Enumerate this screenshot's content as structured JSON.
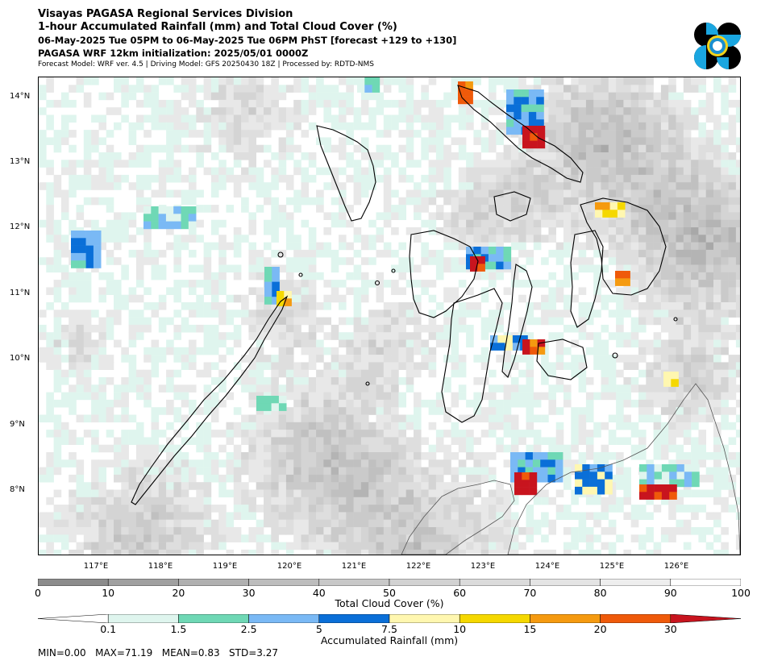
{
  "header": {
    "line1": "Visayas PAGASA Regional Services Division",
    "line2": "1-hour Accumulated Rainfall (mm) and Total Cloud Cover (%)",
    "line3": "06-May-2025 Tue 05PM to 06-May-2025 Tue 06PM PhST [forecast +129 to +130]",
    "line4": "PAGASA WRF 12km initialization: 2025/05/01 0000Z",
    "line5": "Forecast Model: WRF ver. 4.5 | Driving Model: GFS 20250430 18Z | Processed by: RDTD-NMS"
  },
  "map": {
    "lat_labels": [
      "14°N",
      "13°N",
      "12°N",
      "11°N",
      "10°N",
      "9°N",
      "8°N"
    ],
    "lon_labels": [
      "117°E",
      "118°E",
      "119°E",
      "120°E",
      "121°E",
      "122°E",
      "123°E",
      "124°E",
      "125°E",
      "126°E"
    ],
    "lon_range": [
      116.0,
      127.0
    ],
    "lat_range": [
      7.0,
      14.3
    ]
  },
  "cloud_cover_legend": {
    "title": "Total Cloud Cover (%)",
    "ticks": [
      "0",
      "10",
      "20",
      "30",
      "40",
      "50",
      "60",
      "70",
      "80",
      "90",
      "100"
    ],
    "colors": [
      "#8c8c8c",
      "#a0a0a0",
      "#b0b0b0",
      "#bdbdbd",
      "#c8c8c8",
      "#d2d2d2",
      "#dbdbdb",
      "#e4e4e4",
      "#eeeeee",
      "#ffffff"
    ]
  },
  "rainfall_legend": {
    "title": "Accumulated Rainfall (mm)",
    "ticks": [
      "0.1",
      "1.5",
      "2.5",
      "5",
      "7.5",
      "10",
      "15",
      "20",
      "30"
    ],
    "colors": [
      "#ffffff",
      "#dff5ee",
      "#6fd8b5",
      "#7ab9f5",
      "#0a6fd8",
      "#fff7b0",
      "#f5d800",
      "#f59a10",
      "#ef5a0a",
      "#c8141e"
    ]
  },
  "stats": {
    "text": "MIN=0.00   MAX=71.19   MEAN=0.83   STD=3.27"
  }
}
